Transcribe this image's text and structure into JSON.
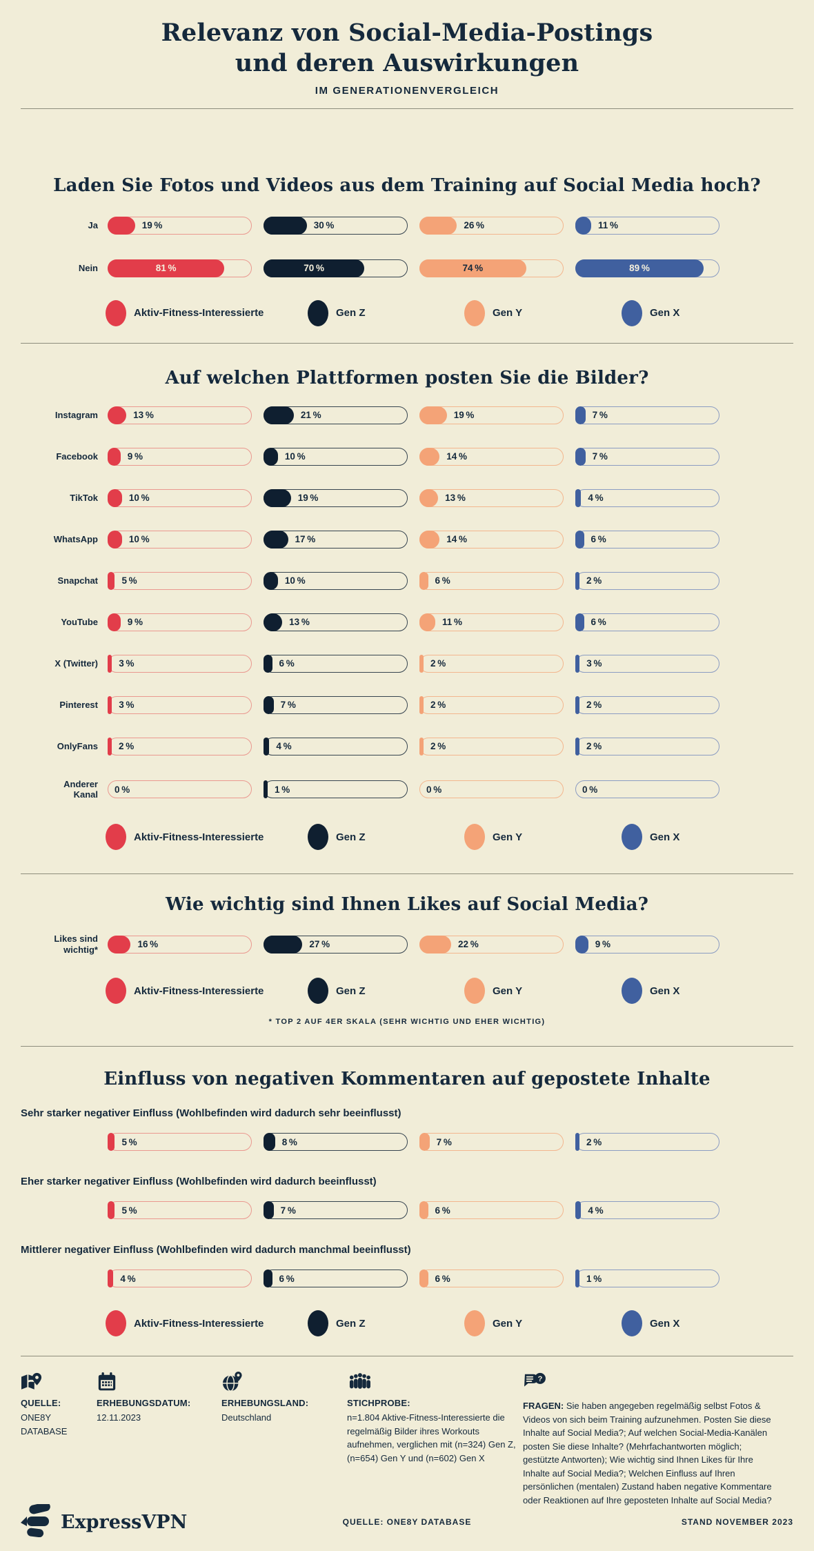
{
  "header": {
    "title_line1": "Relevanz von Social-Media-Postings",
    "title_line2": "und deren Auswirkungen",
    "subtitle": "IM GENERATIONENVERGLEICH"
  },
  "groups": [
    "Aktiv-Fitness-Interessierte",
    "Gen Z",
    "Gen Y",
    "Gen X"
  ],
  "colors": {
    "background": "#f1edd8",
    "navy_text": "#15293c",
    "fills": [
      "#e23d4a",
      "#0f1f30",
      "#f4a377",
      "#40609f"
    ],
    "track_borders": [
      "#ea988f",
      "#36444f",
      "#f3b68e",
      "#8b9cc2"
    ],
    "on_fill": [
      "#f4efdc",
      "#f4efdc",
      "#15293c",
      "#f4efdc"
    ],
    "divider": "#8d8d7c"
  },
  "chart_data": [
    {
      "type": "bar",
      "title": "Laden Sie Fotos und Videos aus dem Training auf Social Media hoch?",
      "unit": "%",
      "xlim": [
        0,
        100
      ],
      "label_mode": "side",
      "legend": true,
      "categories": [
        "Ja",
        "Nein"
      ],
      "series": [
        {
          "name": "Aktiv-Fitness-Interessierte",
          "values": [
            19,
            81
          ]
        },
        {
          "name": "Gen Z",
          "values": [
            30,
            70
          ]
        },
        {
          "name": "Gen Y",
          "values": [
            26,
            74
          ]
        },
        {
          "name": "Gen X",
          "values": [
            11,
            89
          ]
        }
      ]
    },
    {
      "type": "bar",
      "title": "Auf welchen Plattformen posten Sie die Bilder?",
      "unit": "%",
      "xlim": [
        0,
        100
      ],
      "label_mode": "side",
      "legend": true,
      "categories": [
        "Instagram",
        "Facebook",
        "TikTok",
        "WhatsApp",
        "Snapchat",
        "YouTube",
        "X (Twitter)",
        "Pinterest",
        "OnlyFans",
        "Anderer\nKanal"
      ],
      "series": [
        {
          "name": "Aktiv-Fitness-Interessierte",
          "values": [
            13,
            9,
            10,
            10,
            5,
            9,
            3,
            3,
            2,
            0
          ]
        },
        {
          "name": "Gen Z",
          "values": [
            21,
            10,
            19,
            17,
            10,
            13,
            6,
            7,
            4,
            1
          ]
        },
        {
          "name": "Gen Y",
          "values": [
            19,
            14,
            13,
            14,
            6,
            11,
            2,
            2,
            2,
            0
          ]
        },
        {
          "name": "Gen X",
          "values": [
            7,
            7,
            4,
            6,
            2,
            6,
            3,
            2,
            2,
            0
          ]
        }
      ]
    },
    {
      "type": "bar",
      "title": "Wie wichtig sind Ihnen Likes auf Social Media?",
      "unit": "%",
      "xlim": [
        0,
        100
      ],
      "label_mode": "side",
      "legend": true,
      "footnote": "* TOP 2 AUF 4ER SKALA (SEHR WICHTIG UND EHER WICHTIG)",
      "categories": [
        "Likes sind\nwichtig*"
      ],
      "series": [
        {
          "name": "Aktiv-Fitness-Interessierte",
          "values": [
            16
          ]
        },
        {
          "name": "Gen Z",
          "values": [
            27
          ]
        },
        {
          "name": "Gen Y",
          "values": [
            22
          ]
        },
        {
          "name": "Gen X",
          "values": [
            9
          ]
        }
      ]
    },
    {
      "type": "bar",
      "title": "Einfluss von negativen Kommentaren auf gepostete Inhalte",
      "unit": "%",
      "xlim": [
        0,
        100
      ],
      "label_mode": "above",
      "legend": true,
      "categories": [
        "Sehr starker negativer Einfluss (Wohlbefinden wird dadurch sehr beeinflusst)",
        "Eher starker negativer Einfluss (Wohlbefinden wird dadurch beeinflusst)",
        "Mittlerer negativer Einfluss (Wohlbefinden wird dadurch manchmal beeinflusst)"
      ],
      "series": [
        {
          "name": "Aktiv-Fitness-Interessierte",
          "values": [
            5,
            5,
            4
          ]
        },
        {
          "name": "Gen Z",
          "values": [
            8,
            7,
            6
          ]
        },
        {
          "name": "Gen Y",
          "values": [
            7,
            6,
            6
          ]
        },
        {
          "name": "Gen X",
          "values": [
            2,
            4,
            1
          ]
        }
      ]
    }
  ],
  "footer": {
    "columns": [
      {
        "icon": "map-location-icon",
        "heading": "QUELLE:",
        "text": "ONE8Y DATABASE"
      },
      {
        "icon": "calendar-icon",
        "heading": "ERHEBUNGSDATUM:",
        "text": "12.11.2023"
      },
      {
        "icon": "globe-pin-icon",
        "heading": "ERHEBUNGSLAND:",
        "text": "Deutschland"
      },
      {
        "icon": "people-group-icon",
        "heading": "STICHPROBE:",
        "text": "n=1.804 Aktive-Fitness-Interessierte die regelmäßig Bilder ihres Workouts aufnehmen, verglichen mit (n=324) Gen Z, (n=654) Gen Y und (n=602) Gen X"
      },
      {
        "icon": "question-bubbles-icon",
        "heading": "FRAGEN:",
        "text": "Sie haben angegeben regelmäßig selbst Fotos & Videos von sich beim Training aufzunehmen. Posten Sie diese Inhalte auf Social Media?; Auf welchen Social-Media-Kanälen posten Sie diese Inhalte? (Mehrfachantworten möglich; gestützte Antworten); Wie wichtig sind Ihnen Likes für Ihre Inhalte auf Social Media?; Welchen Einfluss auf Ihren persönlichen (mentalen) Zustand haben negative Kommentare oder Reaktionen auf Ihre geposteten Inhalte auf Social Media?"
      }
    ]
  },
  "bottom_bar": {
    "brand": "ExpressVPN",
    "brand_icon": "expressvpn-logo-icon",
    "source": "QUELLE: ONE8Y DATABASE",
    "stand": "STAND NOVEMBER 2023"
  }
}
